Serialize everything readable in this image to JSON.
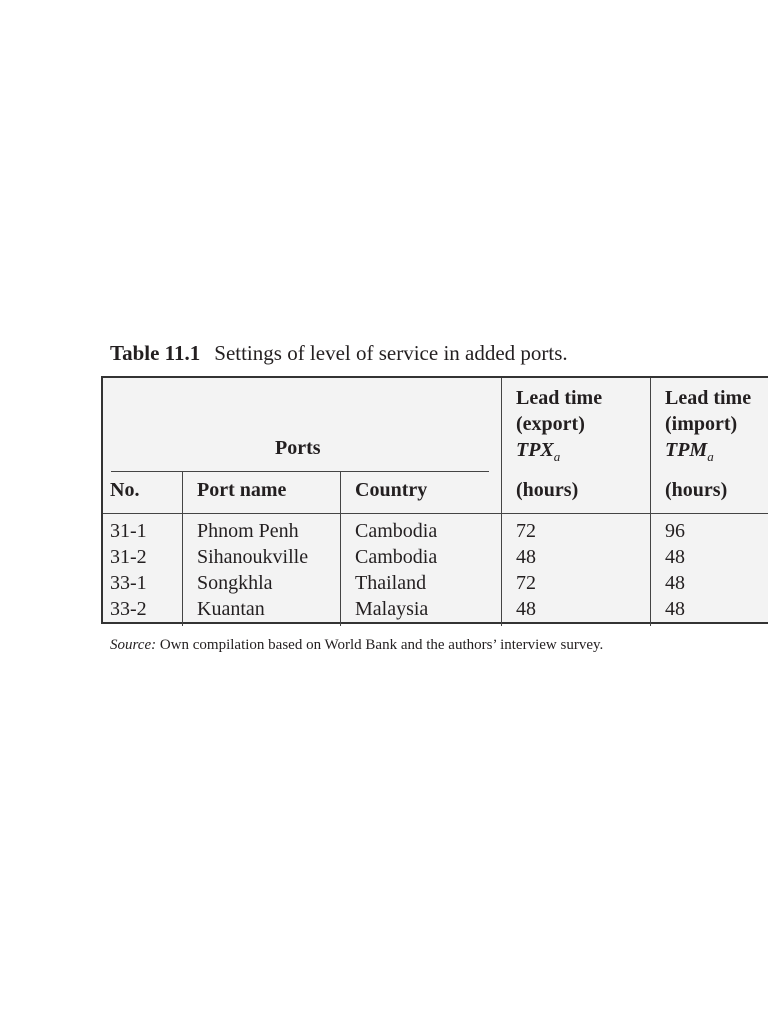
{
  "caption": {
    "number": "Table 11.1",
    "title": "Settings of level of service in added ports."
  },
  "header": {
    "group": "Ports",
    "columns": [
      "No.",
      "Port name",
      "Country"
    ],
    "export": {
      "line1": "Lead time",
      "line2": "(export)",
      "symbol": "TPX",
      "subscript": "a",
      "unit": "(hours)"
    },
    "import": {
      "line1": "Lead time",
      "line2": "(import)",
      "symbol": "TPM",
      "subscript": "a",
      "unit": "(hours)"
    }
  },
  "rows": [
    {
      "no": "31-1",
      "port": "Phnom Penh",
      "country": "Cambodia",
      "export": "72",
      "import": "96"
    },
    {
      "no": "31-2",
      "port": "Sihanoukville",
      "country": "Cambodia",
      "export": "48",
      "import": "48"
    },
    {
      "no": "33-1",
      "port": "Songkhla",
      "country": "Thailand",
      "export": "72",
      "import": "48"
    },
    {
      "no": "33-2",
      "port": "Kuantan",
      "country": "Malaysia",
      "export": "48",
      "import": "48"
    }
  ],
  "source": {
    "label": "Source:",
    "text": "Own compilation based on World Bank and the authors’ interview survey."
  }
}
